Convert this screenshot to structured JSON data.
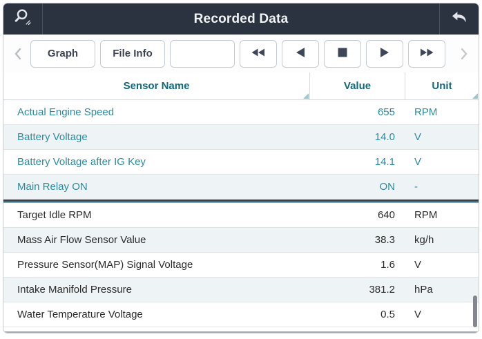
{
  "titlebar": {
    "title": "Recorded Data",
    "left_icon": "magnifier-resize-icon",
    "right_icon": "return-arrow-icon",
    "bg_color": "#2b3340",
    "text_color": "#f2f3f5"
  },
  "toolbar": {
    "prev_page_icon": "chevron-left-icon",
    "next_page_icon": "chevron-right-icon",
    "buttons": [
      {
        "label": "Graph"
      },
      {
        "label": "File Info"
      },
      {
        "label": ""
      }
    ],
    "media_buttons": [
      {
        "icon": "rewind-icon"
      },
      {
        "icon": "step-back-icon"
      },
      {
        "icon": "stop-icon"
      },
      {
        "icon": "play-icon"
      },
      {
        "icon": "fast-forward-icon"
      }
    ]
  },
  "table": {
    "columns": [
      "Sensor Name",
      "Value",
      "Unit"
    ],
    "header_color": "#13697b",
    "pinned_text_color": "#2b8a9d",
    "alt_row_color": "#eef3f5",
    "rows": [
      {
        "name": "Actual Engine Speed",
        "value": "655",
        "unit": "RPM",
        "pinned": true
      },
      {
        "name": "Battery Voltage",
        "value": "14.0",
        "unit": "V",
        "pinned": true
      },
      {
        "name": "Battery Voltage after IG Key",
        "value": "14.1",
        "unit": "V",
        "pinned": true
      },
      {
        "name": "Main Relay ON",
        "value": "ON",
        "unit": "-",
        "pinned": true
      },
      {
        "name": "Target Idle RPM",
        "value": "640",
        "unit": "RPM",
        "pinned": false
      },
      {
        "name": "Mass Air Flow Sensor Value",
        "value": "38.3",
        "unit": "kg/h",
        "pinned": false
      },
      {
        "name": "Pressure Sensor(MAP) Signal Voltage",
        "value": "1.6",
        "unit": "V",
        "pinned": false
      },
      {
        "name": "Intake Manifold Pressure",
        "value": "381.2",
        "unit": "hPa",
        "pinned": false
      },
      {
        "name": "Water Temperature Voltage",
        "value": "0.5",
        "unit": "V",
        "pinned": false
      }
    ]
  }
}
